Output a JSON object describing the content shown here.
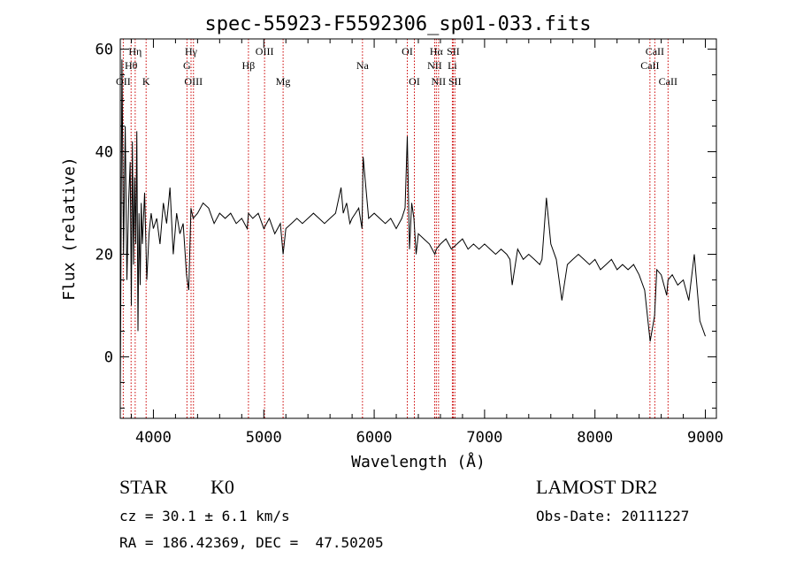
{
  "chart_data": {
    "type": "line",
    "title": "spec-55923-F5592306_sp01-033.fits",
    "xlabel": "Wavelength (Å)",
    "ylabel": "Flux (relative)",
    "xlim": [
      3700,
      9100
    ],
    "ylim": [
      -12,
      62
    ],
    "xticks": [
      4000,
      5000,
      6000,
      7000,
      8000,
      9000
    ],
    "yticks": [
      0,
      20,
      40,
      60
    ],
    "grid": false,
    "series": [
      {
        "color": "#000000",
        "x": [
          3700,
          3715,
          3730,
          3745,
          3760,
          3775,
          3790,
          3800,
          3810,
          3820,
          3830,
          3840,
          3850,
          3860,
          3870,
          3880,
          3890,
          3900,
          3920,
          3940,
          3960,
          3980,
          4000,
          4030,
          4060,
          4090,
          4120,
          4150,
          4180,
          4210,
          4240,
          4270,
          4300,
          4320,
          4340,
          4360,
          4400,
          4450,
          4500,
          4550,
          4600,
          4650,
          4700,
          4750,
          4800,
          4850,
          4861,
          4900,
          4950,
          5000,
          5050,
          5100,
          5150,
          5175,
          5200,
          5250,
          5300,
          5350,
          5400,
          5450,
          5500,
          5550,
          5600,
          5650,
          5700,
          5720,
          5750,
          5780,
          5800,
          5830,
          5860,
          5890,
          5900,
          5950,
          6000,
          6050,
          6100,
          6150,
          6200,
          6250,
          6280,
          6300,
          6320,
          6340,
          6360,
          6380,
          6400,
          6450,
          6500,
          6550,
          6563,
          6600,
          6650,
          6700,
          6750,
          6800,
          6850,
          6900,
          6950,
          7000,
          7050,
          7100,
          7150,
          7200,
          7230,
          7250,
          7300,
          7350,
          7400,
          7450,
          7500,
          7520,
          7540,
          7560,
          7600,
          7650,
          7700,
          7750,
          7800,
          7850,
          7900,
          7950,
          8000,
          8050,
          8100,
          8150,
          8200,
          8250,
          8300,
          8350,
          8400,
          8450,
          8500,
          8540,
          8560,
          8600,
          8650,
          8662,
          8700,
          8750,
          8800,
          8850,
          8900,
          8950,
          9000
        ],
        "y": [
          -8,
          58,
          20,
          45,
          15,
          30,
          38,
          10,
          42,
          18,
          35,
          22,
          44,
          5,
          28,
          14,
          30,
          22,
          32,
          15,
          24,
          28,
          25,
          27,
          22,
          30,
          26,
          33,
          20,
          28,
          24,
          26,
          16,
          13,
          29,
          27,
          28,
          30,
          29,
          26,
          28,
          27,
          28,
          26,
          27,
          25,
          28,
          27,
          28,
          25,
          27,
          24,
          26,
          20,
          25,
          26,
          27,
          26,
          27,
          28,
          27,
          26,
          27,
          28,
          33,
          28,
          30,
          26,
          27,
          28,
          29,
          25,
          39,
          27,
          28,
          27,
          26,
          27,
          25,
          27,
          29,
          43,
          21,
          30,
          27,
          20,
          24,
          23,
          22,
          20,
          21,
          22,
          23,
          21,
          22,
          23,
          21,
          22,
          21,
          22,
          21,
          20,
          21,
          20,
          19,
          14,
          21,
          19,
          20,
          19,
          18,
          19,
          25,
          31,
          22,
          19,
          11,
          18,
          19,
          20,
          19,
          18,
          19,
          17,
          18,
          19,
          17,
          18,
          17,
          18,
          16,
          13,
          3,
          8,
          17,
          16,
          12,
          15,
          16,
          14,
          15,
          11,
          20,
          7,
          4
        ],
        "name": ""
      }
    ],
    "annotations": [
      {
        "label": "OII",
        "x": 3727,
        "row": 3
      },
      {
        "label": "Hθ",
        "x": 3798,
        "row": 2
      },
      {
        "label": "Hη",
        "x": 3835,
        "row": 1
      },
      {
        "label": "K",
        "x": 3934,
        "row": 3
      },
      {
        "label": "Hγ",
        "x": 4341,
        "row": 1
      },
      {
        "label": "G",
        "x": 4304,
        "row": 2
      },
      {
        "label": "OIII",
        "x": 4363,
        "row": 3
      },
      {
        "label": "OIII",
        "x": 5007,
        "row": 1
      },
      {
        "label": "Hβ",
        "x": 4861,
        "row": 2
      },
      {
        "label": "Mg",
        "x": 5175,
        "row": 3
      },
      {
        "label": "Na",
        "x": 5894,
        "row": 2
      },
      {
        "label": "OI",
        "x": 6300,
        "row": 1
      },
      {
        "label": "OI",
        "x": 6364,
        "row": 3
      },
      {
        "label": "Hα",
        "x": 6563,
        "row": 1
      },
      {
        "label": "SII",
        "x": 6716,
        "row": 1
      },
      {
        "label": "NII",
        "x": 6548,
        "row": 2
      },
      {
        "label": "Li",
        "x": 6708,
        "row": 2
      },
      {
        "label": "NII",
        "x": 6583,
        "row": 3
      },
      {
        "label": "SII",
        "x": 6731,
        "row": 3
      },
      {
        "label": "CaII",
        "x": 8542,
        "row": 1
      },
      {
        "label": "CaII",
        "x": 8498,
        "row": 2
      },
      {
        "label": "CaII",
        "x": 8662,
        "row": 3
      }
    ],
    "line_markers": [
      3727,
      3798,
      3835,
      3934,
      4304,
      4341,
      4363,
      4861,
      5007,
      5175,
      5894,
      6300,
      6364,
      6548,
      6563,
      6583,
      6708,
      6716,
      6731,
      8498,
      8542,
      8662
    ],
    "marker_color": "#cc0000"
  },
  "info": {
    "object_class": "STAR",
    "subclass": "K0",
    "survey": "LAMOST DR2",
    "cz": "cz = 30.1 ± 6.1 km/s",
    "obs_date": "Obs-Date: 20111227",
    "coords": "RA = 186.42369, DEC =  47.50205"
  }
}
